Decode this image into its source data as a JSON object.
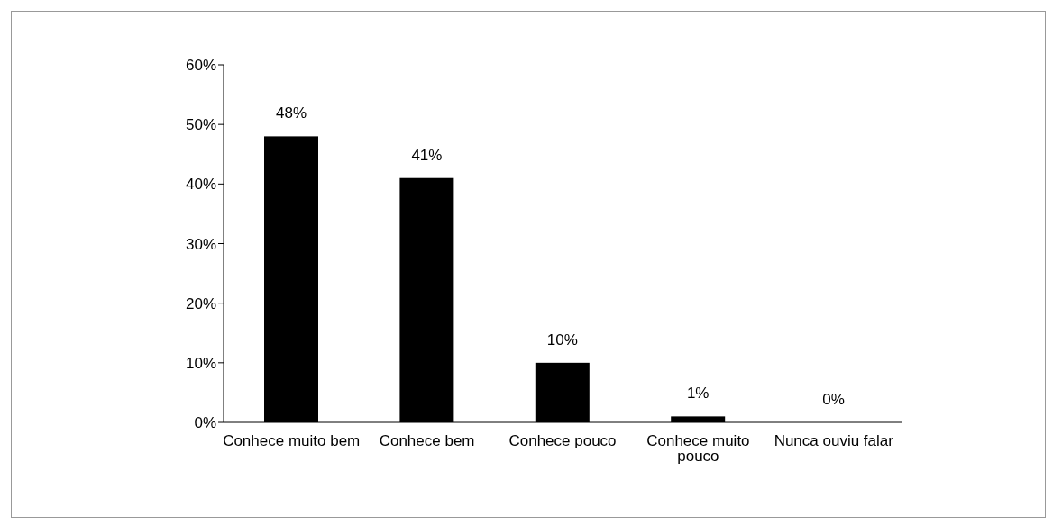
{
  "chart_data": {
    "type": "bar",
    "categories": [
      "Conhece muito bem",
      "Conhece bem",
      "Conhece pouco",
      "Conhece muito pouco",
      "Nunca ouviu falar"
    ],
    "values": [
      48,
      41,
      10,
      1,
      0
    ],
    "value_labels": [
      "48%",
      "41%",
      "10%",
      "1%",
      "0%"
    ],
    "color": "#000000",
    "ylim": [
      0,
      60
    ],
    "yticks": [
      {
        "value": 0,
        "label": "0%"
      },
      {
        "value": 10,
        "label": "10%"
      },
      {
        "value": 20,
        "label": "20%"
      },
      {
        "value": 30,
        "label": "30%"
      },
      {
        "value": 40,
        "label": "40%"
      },
      {
        "value": 50,
        "label": "50%"
      },
      {
        "value": 60,
        "label": "60%"
      }
    ]
  }
}
